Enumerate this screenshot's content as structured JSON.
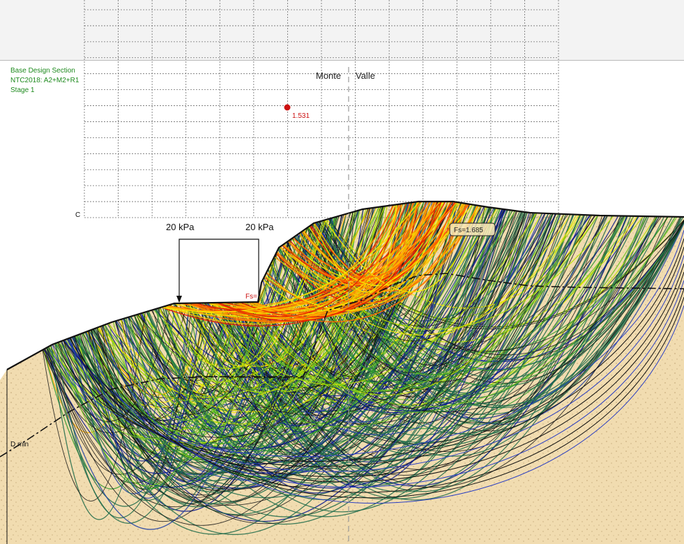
{
  "section_info": {
    "line1": "Base Design Section",
    "line2": "NTC2018: A2+M2+R1",
    "line3": "Stage 1",
    "color": "#1e8a1e"
  },
  "labels": {
    "monte": "Monte",
    "valle": "Valle",
    "grid_corner": "C",
    "load_left": "20 kPa",
    "load_right": "20 kPa",
    "fs_min_prefix": "Fs=",
    "fs_min_value": "1.531",
    "fs_other": "Fs=1.685",
    "d_min": "D min"
  },
  "colors": {
    "soil": "#f1dcb0",
    "soil_speckle": "#b89a6a",
    "grid": "#6f6f6f",
    "critical_center": "#cc1111",
    "surface": "#111111"
  },
  "legend_spectrum": [
    "#e51f00",
    "#ff6a00",
    "#ffae00",
    "#f4e800",
    "#b7e000",
    "#6fc21e",
    "#2f9a2f",
    "#1f6b4a",
    "#1f3fa6",
    "#0b1a8f",
    "#101010"
  ]
}
